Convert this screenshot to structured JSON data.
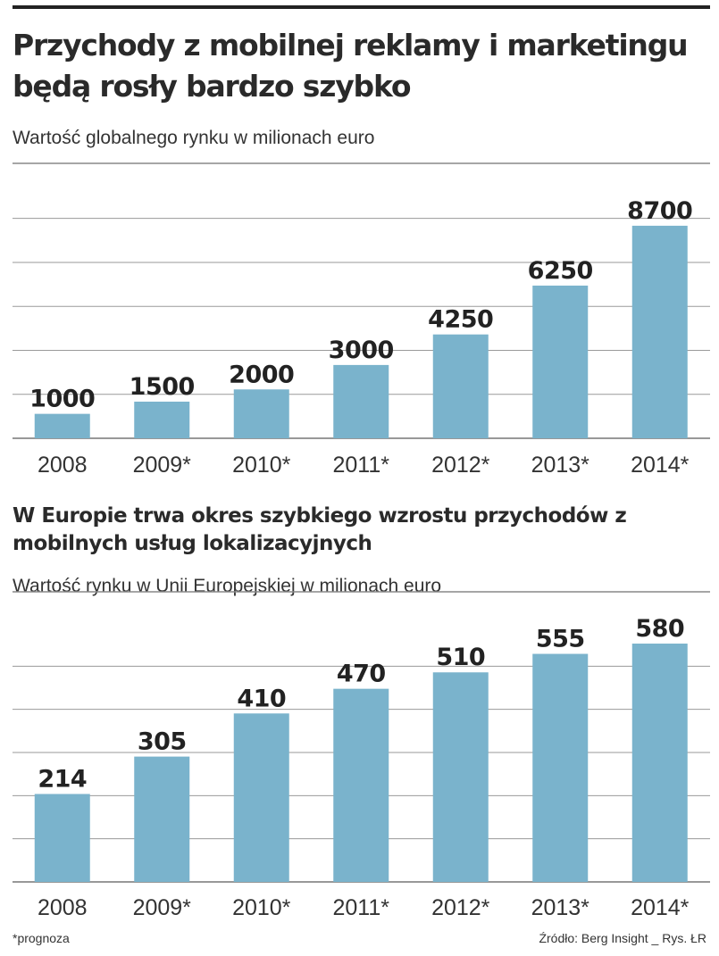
{
  "chart_data": [
    {
      "type": "bar",
      "title": "Przychody z mobilnej reklamy i marketingu będą rosły bardzo szybko",
      "subtitle": "Wartość globalnego rynku w milionach euro",
      "categories": [
        "2008",
        "2009*",
        "2010*",
        "2011*",
        "2012*",
        "2013*",
        "2014*"
      ],
      "values": [
        1000,
        1500,
        2000,
        3000,
        4250,
        6250,
        8700
      ],
      "ylim": [
        0,
        9500
      ],
      "grid_step": 1800,
      "grid": true,
      "bar_color": "#7ab3cc"
    },
    {
      "type": "bar",
      "title": "W Europie trwa okres szybkiego wzrostu przychodów z mobilnych usług lokalizacyjnych",
      "subtitle": "Wartość rynku w Unii Europejskiej w milionach euro",
      "categories": [
        "2008",
        "2009*",
        "2010*",
        "2011*",
        "2012*",
        "2013*",
        "2014*"
      ],
      "values": [
        214,
        305,
        410,
        470,
        510,
        555,
        580
      ],
      "ylim": [
        0,
        630
      ],
      "grid_step": 105,
      "grid": true,
      "bar_color": "#7ab3cc"
    }
  ],
  "footer": {
    "note": "*prognoza",
    "source": "Źródło: Berg Insight",
    "credit": "Rys. ŁR"
  }
}
